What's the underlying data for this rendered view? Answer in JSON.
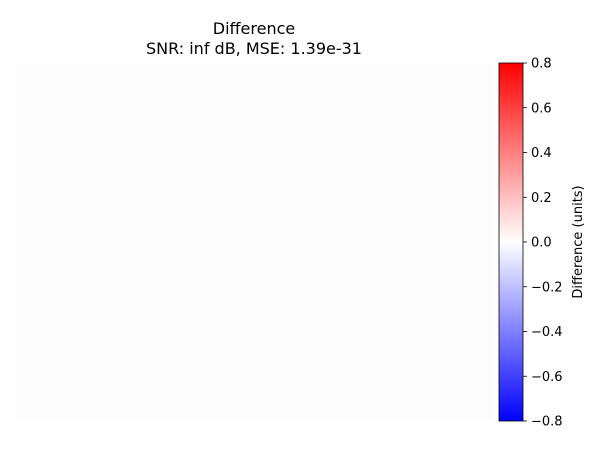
{
  "chart_data": {
    "type": "heatmap",
    "title": "Difference",
    "subtitle": "SNR: inf dB, MSE: 1.39e-31",
    "image": {
      "fill_color": "#fdfdfd",
      "axes_visible": false
    },
    "colorbar": {
      "label": "Difference (units)",
      "colormap": "bwr",
      "colors": [
        "#0000ff",
        "#ffffff",
        "#ff0000"
      ],
      "range": [
        -0.8,
        0.8
      ],
      "ticks": [
        -0.8,
        -0.6,
        -0.4,
        -0.2,
        0.0,
        0.2,
        0.4,
        0.6,
        0.8
      ],
      "tick_labels": [
        "−0.8",
        "−0.6",
        "−0.4",
        "−0.2",
        "0.0",
        "0.2",
        "0.4",
        "0.6",
        "0.8"
      ]
    }
  }
}
